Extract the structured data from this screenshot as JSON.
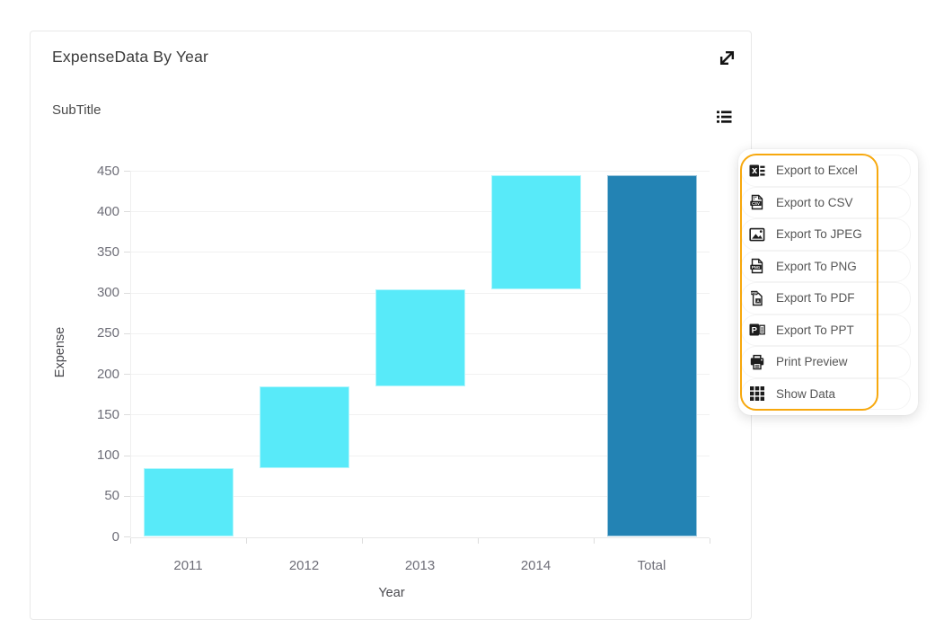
{
  "card": {
    "title": "ExpenseData By Year",
    "subtitle": "SubTitle",
    "toolbar": {
      "expand_icon": "expand-diagonal-arrows-icon",
      "menu_icon": "list-menu-icon"
    }
  },
  "menu": {
    "accent_color": "#F7A80D",
    "items": [
      {
        "icon": "excel-icon",
        "label": "Export to Excel"
      },
      {
        "icon": "csv-icon",
        "label": "Export to CSV"
      },
      {
        "icon": "jpeg-icon",
        "label": "Export To JPEG"
      },
      {
        "icon": "png-icon",
        "label": "Export To PNG"
      },
      {
        "icon": "pdf-icon",
        "label": "Export To PDF"
      },
      {
        "icon": "ppt-icon",
        "label": "Export To PPT"
      },
      {
        "icon": "print-icon",
        "label": "Print Preview"
      },
      {
        "icon": "show-data-icon",
        "label": "Show Data"
      }
    ]
  },
  "chart_data": {
    "type": "bar",
    "subtype": "waterfall",
    "title": "ExpenseData By Year",
    "subtitle": "SubTitle",
    "categories": [
      "2011",
      "2012",
      "2013",
      "2014",
      "Total"
    ],
    "values": [
      85,
      100,
      120,
      140,
      445
    ],
    "is_total": [
      false,
      false,
      false,
      false,
      true
    ],
    "segments": [
      [
        0,
        85
      ],
      [
        85,
        185
      ],
      [
        185,
        305
      ],
      [
        305,
        445
      ],
      [
        0,
        445
      ]
    ],
    "cumulative": [
      85,
      185,
      305,
      445,
      445
    ],
    "xlabel": "Year",
    "ylabel": "Expense",
    "ylim": [
      0,
      450
    ],
    "ytick_step": 50,
    "yticks": [
      0,
      50,
      100,
      150,
      200,
      250,
      300,
      350,
      400,
      450
    ],
    "grid": "horizontal",
    "legend": "none",
    "colors": {
      "series": "#58EAF9",
      "total": "#2383B4"
    }
  }
}
